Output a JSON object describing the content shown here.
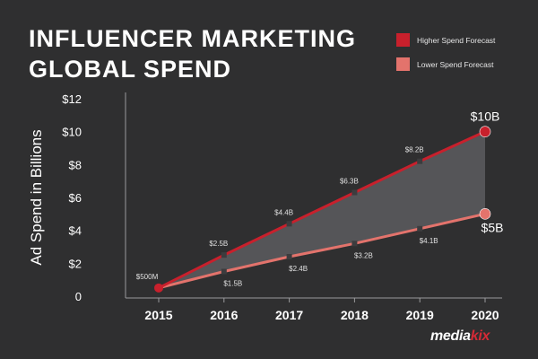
{
  "title": {
    "line1": "INFLUENCER MARKETING",
    "line2": "GLOBAL SPEND"
  },
  "brand": {
    "logo_text": "mediakix",
    "logo_part1": "media",
    "logo_part2": "kix"
  },
  "colors": {
    "background": "#2f2f30",
    "higher": "#c8202c",
    "lower": "#e3736c",
    "fill": "#5a5a5d",
    "point": "#3c3c3e"
  },
  "chart_data": {
    "type": "line",
    "title": "INFLUENCER MARKETING GLOBAL SPEND",
    "ylabel": "Ad Spend in Billions",
    "xlabel": "",
    "categories": [
      "2015",
      "2016",
      "2017",
      "2018",
      "2019",
      "2020"
    ],
    "ylim": [
      0,
      12
    ],
    "yticks": [
      {
        "value": 0,
        "label": "0"
      },
      {
        "value": 2,
        "label": "$2"
      },
      {
        "value": 4,
        "label": "$4"
      },
      {
        "value": 6,
        "label": "$6"
      },
      {
        "value": 8,
        "label": "$8"
      },
      {
        "value": 10,
        "label": "$10"
      },
      {
        "value": 12,
        "label": "$12"
      }
    ],
    "legend_position": "top-right",
    "grid": false,
    "series": [
      {
        "name": "Higher Spend Forecast",
        "color": "#c8202c",
        "values": [
          0.5,
          2.5,
          4.4,
          6.3,
          8.2,
          10
        ],
        "labels": [
          "$500M",
          "$2.5B",
          "$4.4B",
          "$6.3B",
          "$8.2B",
          "$10B"
        ]
      },
      {
        "name": "Lower Spend Forecast",
        "color": "#e3736c",
        "values": [
          0.5,
          1.5,
          2.4,
          3.2,
          4.1,
          5
        ],
        "labels": [
          "",
          "$1.5B",
          "$2.4B",
          "$3.2B",
          "$4.1B",
          "$5B"
        ]
      }
    ]
  }
}
